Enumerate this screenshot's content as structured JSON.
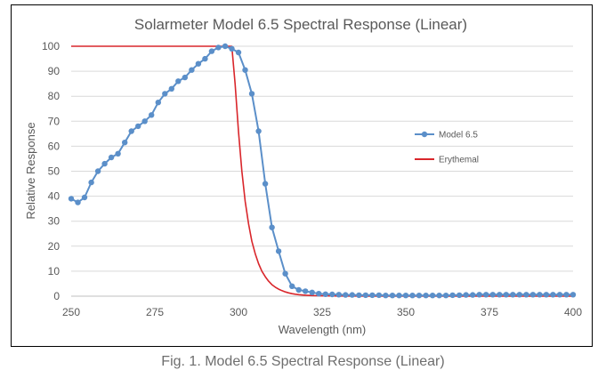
{
  "caption": "Fig. 1. Model 6.5 Spectral Response (Linear)",
  "chart_data": {
    "type": "line",
    "title": "Solarmeter Model 6.5 Spectral Response (Linear)",
    "xlabel": "Wavelength (nm)",
    "ylabel": "Relative Response",
    "xlim": [
      250,
      400
    ],
    "ylim": [
      0,
      100
    ],
    "x_ticks": [
      250,
      275,
      300,
      325,
      350,
      375,
      400
    ],
    "y_ticks": [
      0,
      10,
      20,
      30,
      40,
      50,
      60,
      70,
      80,
      90,
      100
    ],
    "grid": "horizontal",
    "legend_position": "right",
    "series": [
      {
        "name": "Model 6.5",
        "color": "#5b8fc9",
        "marker": "circle",
        "points": [
          [
            250,
            39
          ],
          [
            252,
            37.5
          ],
          [
            254,
            39.5
          ],
          [
            256,
            45.5
          ],
          [
            258,
            50
          ],
          [
            260,
            53
          ],
          [
            262,
            55.5
          ],
          [
            264,
            57
          ],
          [
            266,
            61.5
          ],
          [
            268,
            66
          ],
          [
            270,
            68
          ],
          [
            272,
            70
          ],
          [
            274,
            72.5
          ],
          [
            276,
            77.5
          ],
          [
            278,
            81
          ],
          [
            280,
            83
          ],
          [
            282,
            86
          ],
          [
            284,
            87.5
          ],
          [
            286,
            90.5
          ],
          [
            288,
            93
          ],
          [
            290,
            95
          ],
          [
            292,
            98
          ],
          [
            294,
            99.5
          ],
          [
            296,
            100
          ],
          [
            298,
            99
          ],
          [
            300,
            97.5
          ],
          [
            302,
            90.5
          ],
          [
            304,
            81
          ],
          [
            306,
            66
          ],
          [
            308,
            45
          ],
          [
            310,
            27.5
          ],
          [
            312,
            18
          ],
          [
            314,
            9
          ],
          [
            316,
            4
          ],
          [
            318,
            2.5
          ],
          [
            320,
            2
          ],
          [
            322,
            1.5
          ],
          [
            324,
            1
          ],
          [
            326,
            0.8
          ],
          [
            328,
            0.7
          ],
          [
            330,
            0.6
          ],
          [
            332,
            0.5
          ],
          [
            334,
            0.5
          ],
          [
            336,
            0.4
          ],
          [
            338,
            0.4
          ],
          [
            340,
            0.4
          ],
          [
            342,
            0.4
          ],
          [
            344,
            0.3
          ],
          [
            346,
            0.3
          ],
          [
            348,
            0.3
          ],
          [
            350,
            0.3
          ],
          [
            352,
            0.3
          ],
          [
            354,
            0.3
          ],
          [
            356,
            0.3
          ],
          [
            358,
            0.3
          ],
          [
            360,
            0.3
          ],
          [
            362,
            0.3
          ],
          [
            364,
            0.4
          ],
          [
            366,
            0.4
          ],
          [
            368,
            0.5
          ],
          [
            370,
            0.5
          ],
          [
            372,
            0.6
          ],
          [
            374,
            0.6
          ],
          [
            376,
            0.6
          ],
          [
            378,
            0.6
          ],
          [
            380,
            0.6
          ],
          [
            382,
            0.6
          ],
          [
            384,
            0.6
          ],
          [
            386,
            0.6
          ],
          [
            388,
            0.6
          ],
          [
            390,
            0.6
          ],
          [
            392,
            0.6
          ],
          [
            394,
            0.6
          ],
          [
            396,
            0.6
          ],
          [
            398,
            0.6
          ],
          [
            400,
            0.6
          ]
        ]
      },
      {
        "name": "Erythemal",
        "color": "#d9262b",
        "marker": "none",
        "points": [
          [
            250,
            100
          ],
          [
            298,
            100
          ],
          [
            299,
            85
          ],
          [
            300,
            65.9
          ],
          [
            301,
            50
          ],
          [
            302,
            38
          ],
          [
            303,
            29
          ],
          [
            304,
            22
          ],
          [
            305,
            17
          ],
          [
            306,
            13
          ],
          [
            307,
            10
          ],
          [
            308,
            7.8
          ],
          [
            309,
            6.0
          ],
          [
            310,
            4.6
          ],
          [
            311,
            3.6
          ],
          [
            312,
            2.8
          ],
          [
            313,
            2.2
          ],
          [
            314,
            1.7
          ],
          [
            315,
            1.3
          ],
          [
            316,
            1.0
          ],
          [
            317,
            0.8
          ],
          [
            318,
            0.6
          ],
          [
            320,
            0.4
          ],
          [
            322,
            0.25
          ],
          [
            325,
            0.14
          ],
          [
            330,
            0.08
          ],
          [
            340,
            0.04
          ],
          [
            360,
            0.02
          ],
          [
            380,
            0.015
          ],
          [
            400,
            0.01
          ]
        ]
      }
    ]
  }
}
